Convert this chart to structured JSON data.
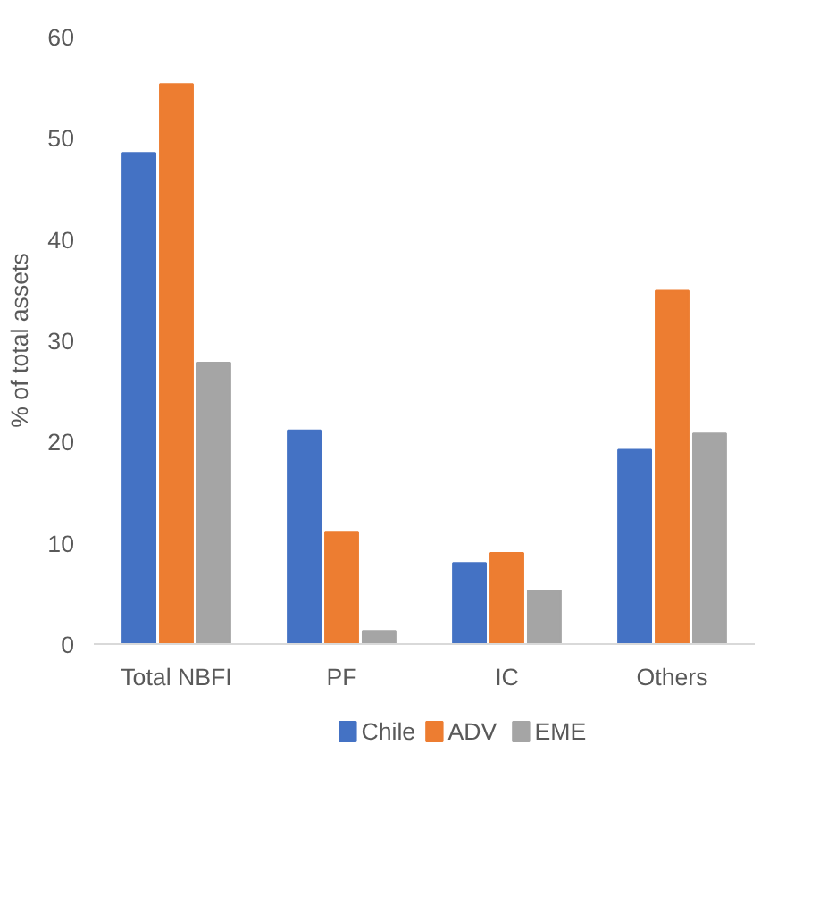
{
  "chart_data": {
    "type": "bar",
    "ylabel": "% of total assets",
    "categories": [
      "Total NBFI",
      "PF",
      "IC",
      "Others"
    ],
    "series": [
      {
        "name": "Chile",
        "color": "#4472c4",
        "values": [
          48.5,
          21.1,
          8.0,
          19.2
        ]
      },
      {
        "name": "ADV",
        "color": "#ed7d31",
        "values": [
          55.3,
          11.1,
          9.0,
          34.9
        ]
      },
      {
        "name": "EME",
        "color": "#a5a5a5",
        "values": [
          27.8,
          1.3,
          5.3,
          20.8
        ]
      }
    ],
    "ylim": [
      0,
      60
    ],
    "yticks": [
      0,
      10,
      20,
      30,
      40,
      50,
      60
    ],
    "grid": false,
    "legend": "bottom"
  }
}
